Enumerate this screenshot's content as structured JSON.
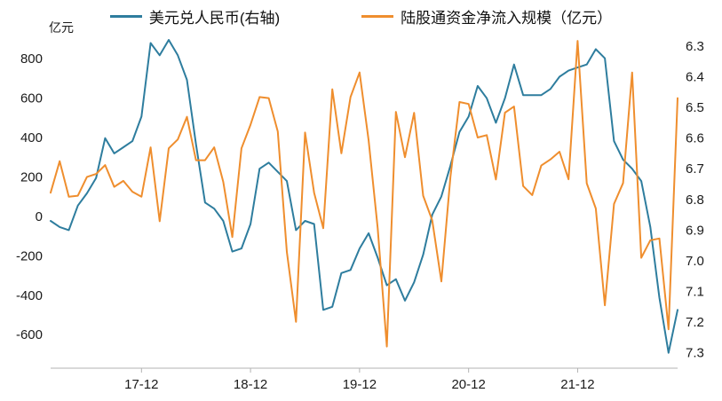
{
  "chart_data": {
    "type": "line",
    "title": "",
    "unit_label": "亿元",
    "legend_position": "top",
    "grid": false,
    "x": [
      "17-02",
      "17-03",
      "17-04",
      "17-05",
      "17-06",
      "17-07",
      "17-08",
      "17-09",
      "17-10",
      "17-11",
      "17-12",
      "18-01",
      "18-02",
      "18-03",
      "18-04",
      "18-05",
      "18-06",
      "18-07",
      "18-08",
      "18-09",
      "18-10",
      "18-11",
      "18-12",
      "19-01",
      "19-02",
      "19-03",
      "19-04",
      "19-05",
      "19-06",
      "19-07",
      "19-08",
      "19-09",
      "19-10",
      "19-11",
      "19-12",
      "20-01",
      "20-02",
      "20-03",
      "20-04",
      "20-05",
      "20-06",
      "20-07",
      "20-08",
      "20-09",
      "20-10",
      "20-11",
      "20-12",
      "21-01",
      "21-02",
      "21-03",
      "21-04",
      "21-05",
      "21-06",
      "21-07",
      "21-08",
      "21-09",
      "21-10",
      "21-11",
      "21-12",
      "22-01",
      "22-02",
      "22-03",
      "22-04",
      "22-05",
      "22-06",
      "22-07",
      "22-08",
      "22-09",
      "22-10",
      "22-11"
    ],
    "x_ticks": {
      "labels": [
        "17-12",
        "18-12",
        "19-12",
        "20-12",
        "21-12"
      ],
      "indices": [
        10,
        22,
        34,
        46,
        58
      ]
    },
    "left_axis": {
      "label": "亿元",
      "min": -770,
      "max": 895,
      "ticks": [
        800,
        600,
        400,
        200,
        0,
        -200,
        -400,
        -600
      ]
    },
    "right_axis": {
      "min": 6.28,
      "max": 7.35,
      "inverted": true,
      "ticks": [
        6.3,
        6.4,
        6.5,
        6.6,
        6.7,
        6.8,
        6.9,
        7.0,
        7.1,
        7.2,
        7.3
      ]
    },
    "series": [
      {
        "name": "美元兑人民币(右轴)",
        "axis": "right",
        "color": "#2e7d9e",
        "values": [
          6.87,
          6.89,
          6.9,
          6.82,
          6.78,
          6.73,
          6.6,
          6.65,
          6.63,
          6.61,
          6.53,
          6.29,
          6.33,
          6.28,
          6.33,
          6.41,
          6.62,
          6.81,
          6.83,
          6.87,
          6.97,
          6.96,
          6.88,
          6.7,
          6.68,
          6.71,
          6.74,
          6.9,
          6.87,
          6.88,
          7.16,
          7.15,
          7.04,
          7.03,
          6.96,
          6.91,
          6.99,
          7.08,
          7.06,
          7.13,
          7.07,
          6.98,
          6.85,
          6.79,
          6.69,
          6.58,
          6.53,
          6.43,
          6.47,
          6.55,
          6.47,
          6.36,
          6.46,
          6.46,
          6.46,
          6.44,
          6.4,
          6.38,
          6.37,
          6.36,
          6.31,
          6.34,
          6.61,
          6.67,
          6.7,
          6.74,
          6.89,
          7.12,
          7.3,
          7.16
        ]
      },
      {
        "name": "陆股通资金净流入规模（亿元）",
        "axis": "left",
        "color": "#ef8e2e",
        "values": [
          120,
          280,
          100,
          105,
          200,
          215,
          260,
          150,
          180,
          125,
          100,
          350,
          -25,
          345,
          390,
          505,
          285,
          285,
          350,
          175,
          -105,
          345,
          465,
          605,
          600,
          430,
          -180,
          -535,
          425,
          120,
          -60,
          645,
          320,
          605,
          730,
          385,
          -60,
          -660,
          530,
          300,
          525,
          105,
          -20,
          -330,
          200,
          580,
          570,
          400,
          412,
          187,
          526,
          557,
          154,
          108,
          258,
          289,
          328,
          188,
          890,
          168,
          40,
          -451,
          63,
          169,
          730,
          -210,
          -121,
          -112,
          -573,
          600
        ]
      }
    ]
  }
}
